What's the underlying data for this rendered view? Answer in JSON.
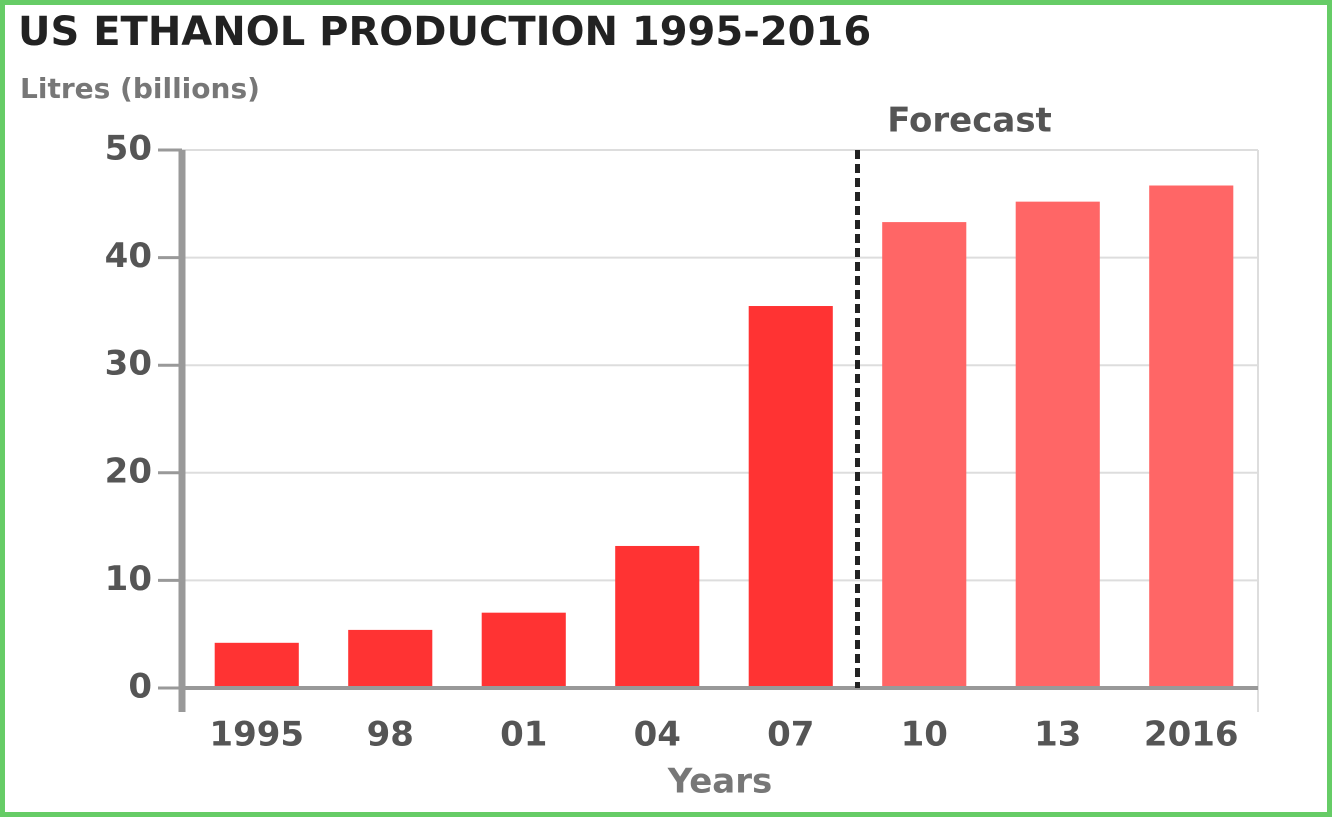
{
  "chart_data": {
    "type": "bar",
    "title": "US ETHANOL PRODUCTION 1995-2016",
    "subtitle": "Litres (billions)",
    "x_label": "Years",
    "annotation": "Forecast",
    "categories": [
      "1995",
      "98",
      "01",
      "04",
      "07",
      "10",
      "13",
      "2016"
    ],
    "values": [
      4.2,
      5.4,
      7,
      13.2,
      35.5,
      43.3,
      45.2,
      46.7
    ],
    "colors": [
      "#ff3333",
      "#ff3333",
      "#ff3333",
      "#ff3333",
      "#ff3333",
      "#ff6666",
      "#ff6666",
      "#ff6666"
    ],
    "ylim": [
      0,
      50
    ],
    "yticks": [
      0,
      10,
      20,
      30,
      40,
      50
    ],
    "grid": true
  }
}
